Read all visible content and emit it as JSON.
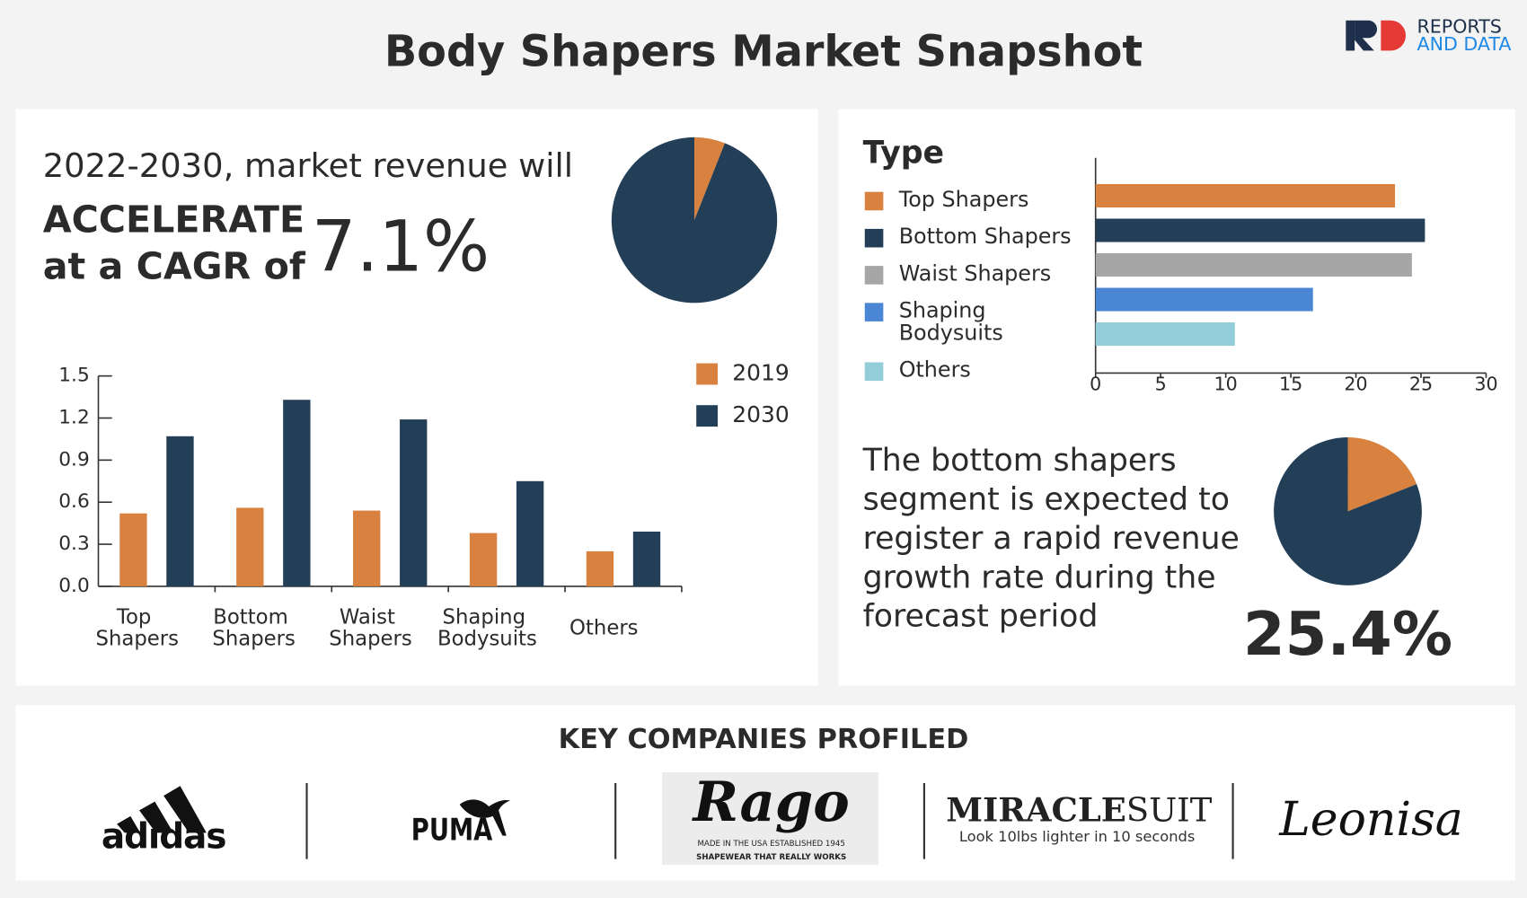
{
  "header": {
    "title": "Body Shapers Market Snapshot",
    "logo": [
      "REPORTS",
      "AND DATA"
    ]
  },
  "chart_data": [
    {
      "type": "pie",
      "values": [
        6,
        94
      ],
      "colors": [
        "#d9823f",
        "#233f58"
      ],
      "headline": "2022-2030, market revenue will",
      "label": [
        "ACCELERATE",
        "at a CAGR of"
      ],
      "value_text": "7.1%"
    },
    {
      "type": "bar",
      "categories": [
        "Top Shapers",
        "Bottom Shapers",
        "Waist Shapers",
        "Shaping Bodysuits",
        "Others"
      ],
      "series": [
        {
          "name": "2019",
          "color": "#d9823f",
          "values": [
            0.52,
            0.56,
            0.54,
            0.38,
            0.25
          ]
        },
        {
          "name": "2030",
          "color": "#233f58",
          "values": [
            1.07,
            1.33,
            1.19,
            0.75,
            0.39
          ]
        }
      ],
      "ylim": [
        0,
        1.5
      ],
      "yticks": [
        {
          "value": 0,
          "label": "0.0"
        },
        0.3,
        0.6,
        0.9,
        1.2,
        1.5
      ],
      "legend": "upper right"
    },
    {
      "type": "hbar",
      "title": "Type",
      "categories": [
        "Top Shapers",
        "Bottom Shapers",
        "Waist Shapers",
        "Shaping Bodysuits",
        "Others"
      ],
      "values": [
        23,
        25.3,
        24.3,
        16.7,
        10.7
      ],
      "colors": [
        "#d9823f",
        "#233f58",
        "#a6a6a6",
        "#4a86d4",
        "#93cdda"
      ],
      "xlim": [
        0,
        30
      ],
      "xticks": [
        0,
        5,
        10,
        15,
        20,
        25,
        30
      ]
    },
    {
      "type": "pie",
      "values": [
        19,
        81
      ],
      "colors": [
        "#d9823f",
        "#233f58"
      ],
      "text": [
        "The bottom shapers",
        "segment is expected to",
        "register a rapid revenue",
        "growth rate during the",
        "forecast period"
      ],
      "value_text": "25.4%"
    }
  ],
  "companies": {
    "title": "KEY COMPANIES PROFILED",
    "logos": [
      {
        "name": "adidas"
      },
      {
        "name": "PUMA"
      },
      {
        "name": "Rago",
        "lines": [
          "MADE IN THE USA ESTABLISHED 1945",
          "SHAPEWEAR THAT REALLY WORKS"
        ]
      },
      {
        "name": "MIRACLESUIT",
        "tagline": "Look 10lbs lighter in 10 seconds"
      },
      {
        "name": "Leonisa"
      }
    ]
  }
}
